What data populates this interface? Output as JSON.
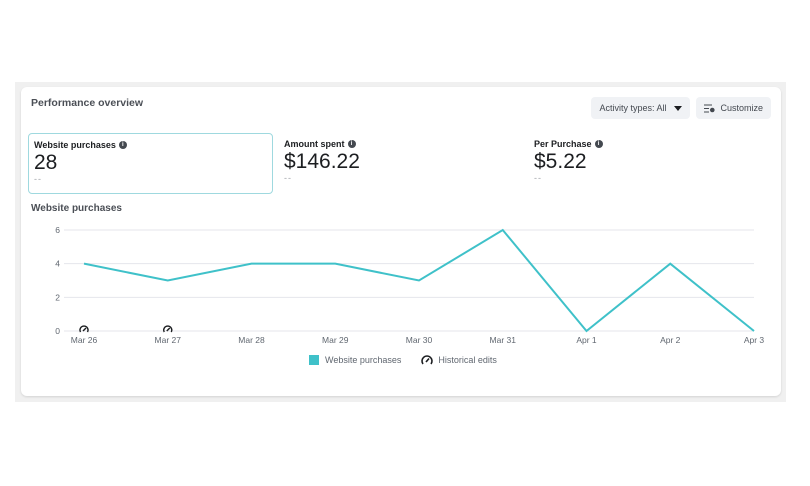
{
  "panel": {
    "title": "Performance overview",
    "activity_types_label": "Activity types: All",
    "customize_label": "Customize"
  },
  "metrics": [
    {
      "label": "Website purchases",
      "value": "28",
      "compare": "--",
      "selected": true
    },
    {
      "label": "Amount spent",
      "value": "$146.22",
      "compare": "--",
      "selected": false
    },
    {
      "label": "Per Purchase",
      "value": "$5.22",
      "compare": "--",
      "selected": false
    }
  ],
  "icons": {
    "info": "info-icon",
    "dropdown": "caret-down-icon",
    "customize": "customize-sliders-icon",
    "historical_edit": "historical-edit-gauge-icon"
  },
  "colors": {
    "series": "#3fc1c9",
    "selected_border": "#9fd9df",
    "grid": "#e4e6eb"
  },
  "legend": {
    "series_label": "Website purchases",
    "historical_label": "Historical edits"
  },
  "chart_data": {
    "type": "line",
    "title": "Website purchases",
    "xlabel": "",
    "ylabel": "",
    "categories": [
      "Mar 26",
      "Mar 27",
      "Mar 28",
      "Mar 29",
      "Mar 30",
      "Mar 31",
      "Apr 1",
      "Apr 2",
      "Apr 3"
    ],
    "series": [
      {
        "name": "Website purchases",
        "values": [
          4,
          3,
          4,
          4,
          3,
          6,
          0,
          4,
          0
        ],
        "color": "#3fc1c9"
      }
    ],
    "y_ticks": [
      0,
      2,
      4,
      6
    ],
    "ylim": [
      0,
      6
    ],
    "grid": true,
    "legend_position": "bottom",
    "annotations": [
      {
        "type": "historical_edit",
        "x": "Mar 26"
      },
      {
        "type": "historical_edit",
        "x": "Mar 27"
      }
    ]
  }
}
